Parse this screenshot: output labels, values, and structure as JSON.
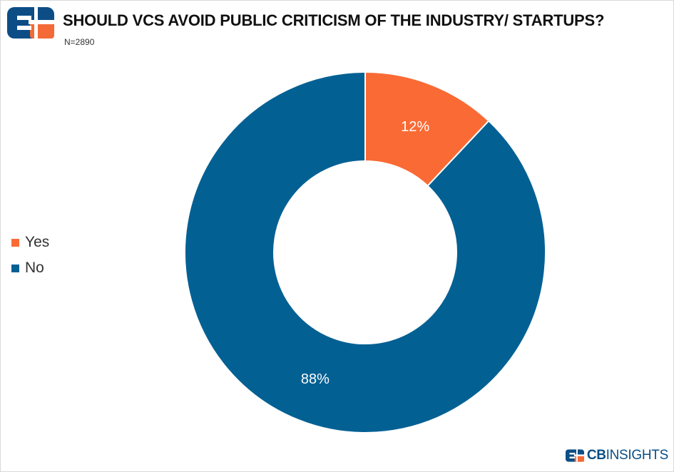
{
  "header": {
    "title": "SHOULD VCS AVOID PUBLIC CRITICISM OF THE INDUSTRY/ STARTUPS?",
    "subtitle": "N=2890",
    "logo_icon": "cb-insights-logo-icon"
  },
  "footer": {
    "brand_bold": "CB",
    "brand_thin": "INSIGHTS",
    "logo_icon": "cb-insights-logo-icon"
  },
  "colors": {
    "yes": "#fa6a35",
    "no": "#036093",
    "logo_navy": "#0c4d86",
    "logo_orange": "#f46a37"
  },
  "chart_data": {
    "type": "pie",
    "style": "donut",
    "title": "SHOULD VCS AVOID PUBLIC CRITICISM OF THE INDUSTRY/ STARTUPS?",
    "subtitle": "N=2890",
    "legend_position": "left",
    "slices": [
      {
        "label": "Yes",
        "value": 12,
        "display": "12%",
        "color": "#fa6a35"
      },
      {
        "label": "No",
        "value": 88,
        "display": "88%",
        "color": "#036093"
      }
    ]
  }
}
